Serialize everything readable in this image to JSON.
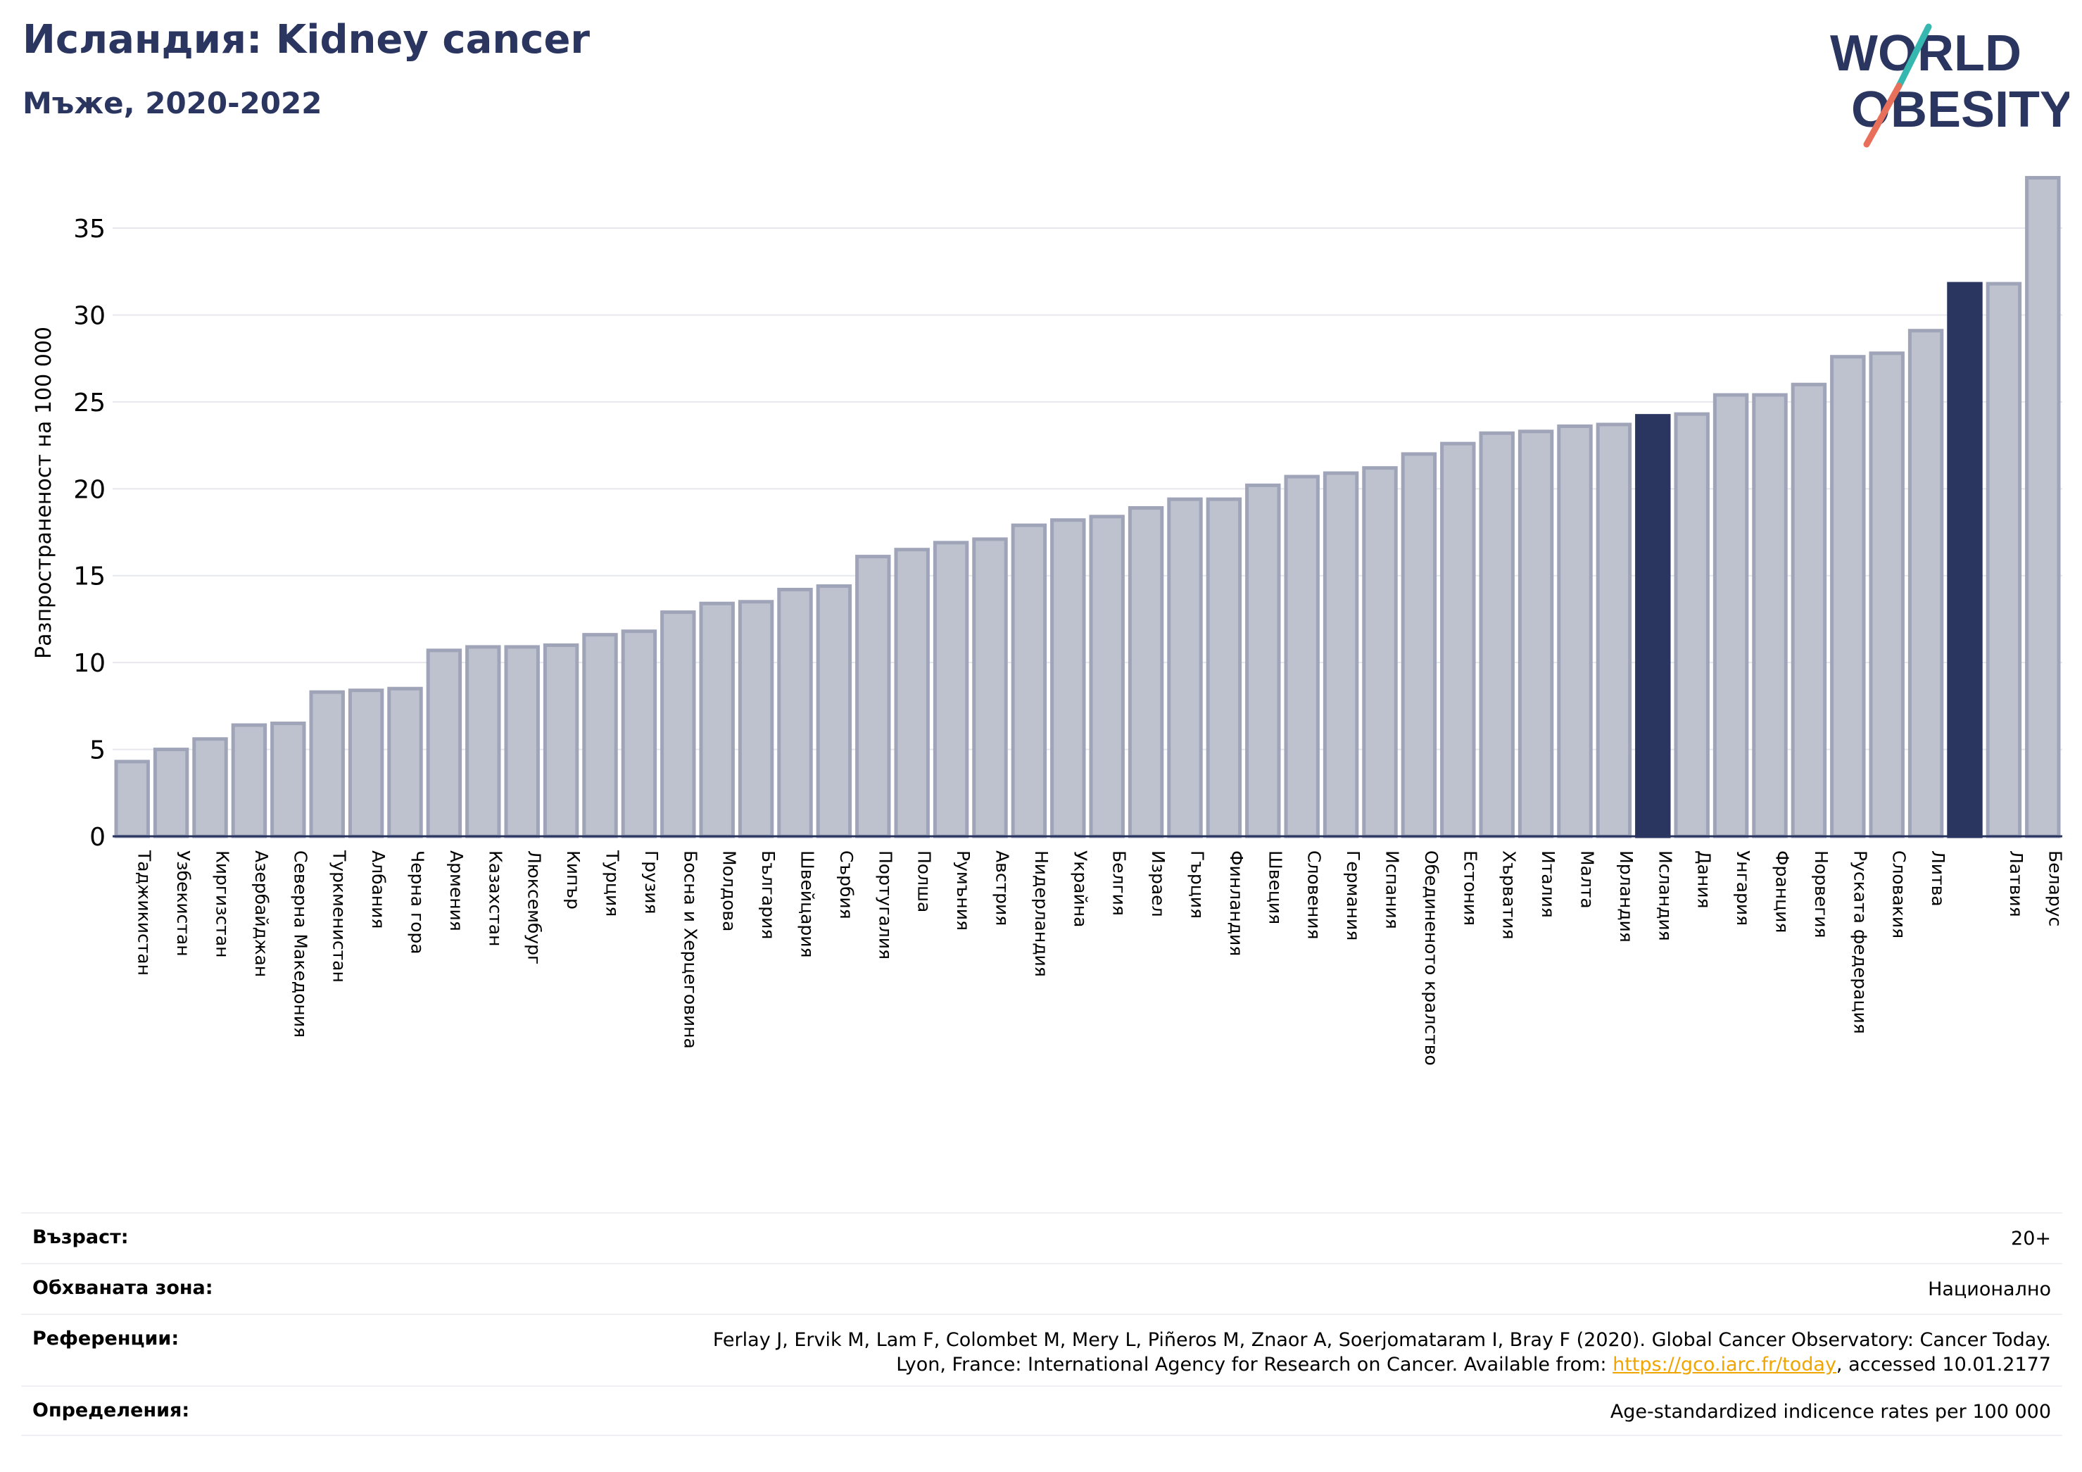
{
  "header": {
    "title": "Исландия: Kidney cancer",
    "subtitle": "Мъже, 2020-2022"
  },
  "logo": {
    "line1": "WORLD",
    "line2": "OBESITY",
    "accent_colors": [
      "#36b8b0",
      "#e8705a"
    ],
    "text_color": "#2a3560"
  },
  "colors": {
    "bar": "#bec2cf",
    "bar_edge": "#9fa4b8",
    "highlight": "#2a3560",
    "grid": "#e6e8ee",
    "axis": "#2a3560"
  },
  "chart_data": {
    "type": "bar",
    "ylabel": "Разпространеност  на 100 000",
    "ylim": [
      0,
      38
    ],
    "yticks": [
      0,
      5,
      10,
      15,
      20,
      25,
      30,
      35
    ],
    "grid": true,
    "highlighted": [
      "Исландия",
      "Latvia-highlight"
    ],
    "categories": [
      "Таджикистан",
      "Узбекистан",
      "Киргизстан",
      "Азербайджан",
      "Северна Македония",
      "Туркменистан",
      "Албания",
      "Черна гора",
      "Армения",
      "Казахстан",
      "Люксембург",
      "Кипър",
      "Турция",
      "Грузия",
      "Босна и Херцеговина",
      "Молдова",
      "България",
      "Швейцария",
      "Сърбия",
      "Португалия",
      "Полша",
      "Румъния",
      "Австрия",
      "Нидерландия",
      "Украйна",
      "Белгия",
      "Израел",
      "Гърция",
      "Финландия",
      "Швеция",
      "Словения",
      "Германия",
      "Испания",
      "Обединеното кралство",
      "Естония",
      "Хърватия",
      "Италия",
      "Малта",
      "Ирландия",
      "Исландия",
      "Дания",
      "Унгария",
      "Франция",
      "Норвегия",
      "Руската федерация",
      "Словакия",
      "Литва",
      "",
      "Латвия",
      "Беларус"
    ],
    "values": [
      4.3,
      5.0,
      5.6,
      6.4,
      6.5,
      8.3,
      8.4,
      8.5,
      10.7,
      10.9,
      10.9,
      11.0,
      11.6,
      11.8,
      12.9,
      13.4,
      13.5,
      14.2,
      14.4,
      16.1,
      16.5,
      16.9,
      17.1,
      17.9,
      18.2,
      18.4,
      18.9,
      19.4,
      19.4,
      20.2,
      20.7,
      20.9,
      21.2,
      22.0,
      22.6,
      23.2,
      23.3,
      23.6,
      23.7,
      24.2,
      24.3,
      25.4,
      25.4,
      26.0,
      27.6,
      27.8,
      29.1,
      31.8,
      31.8,
      37.9
    ],
    "highlight_index": [
      39,
      47
    ]
  },
  "info": {
    "age_label": "Възраст:",
    "age_value": "20+",
    "area_label": "Обхваната зона:",
    "area_value": "Национално",
    "ref_label": "Референции:",
    "ref_line1": "Ferlay J, Ervik M, Lam F, Colombet M, Mery L, Piñeros M, Znaor A, Soerjomataram I, Bray F (2020). Global Cancer Observatory: Cancer Today.",
    "ref_line2_pre": "Lyon, France: International Agency for Research on Cancer. Available from: ",
    "ref_link": "https://gco.iarc.fr/today",
    "ref_line2_post": ", accessed 10.01.2177",
    "def_label": "Определения:",
    "def_value": "Age-standardized indicence rates per 100 000"
  }
}
